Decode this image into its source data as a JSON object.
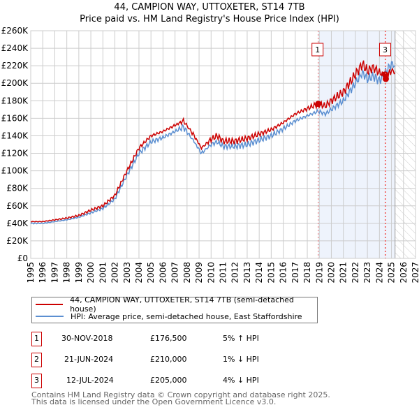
{
  "title": "44, CAMPION WAY, UTTOXETER, ST14 7TB",
  "subtitle": "Price paid vs. HM Land Registry's House Price Index (HPI)",
  "colors": {
    "property": "#cc0000",
    "hpi": "#5b8fd1",
    "shade": "#eef3fc"
  },
  "chart_data": {
    "type": "line",
    "xlim": [
      1995,
      2027
    ],
    "ylim": [
      0,
      260000
    ],
    "yticks": [
      0,
      20000,
      40000,
      60000,
      80000,
      100000,
      120000,
      140000,
      160000,
      180000,
      200000,
      220000,
      240000,
      260000
    ],
    "ytick_labels": [
      "£0",
      "£20K",
      "£40K",
      "£60K",
      "£80K",
      "£100K",
      "£120K",
      "£140K",
      "£160K",
      "£180K",
      "£200K",
      "£220K",
      "£240K",
      "£260K"
    ],
    "xticks": [
      1995,
      1996,
      1997,
      1998,
      1999,
      2000,
      2001,
      2002,
      2003,
      2004,
      2005,
      2006,
      2007,
      2008,
      2009,
      2010,
      2011,
      2012,
      2013,
      2014,
      2015,
      2016,
      2017,
      2018,
      2019,
      2020,
      2021,
      2022,
      2023,
      2024,
      2025,
      2026,
      2027
    ],
    "grid": true,
    "shaded_range": [
      2018.91,
      2025.3
    ],
    "hatched_from": 2025.3,
    "series": [
      {
        "name": "44, CAMPION WAY, UTTOXETER, ST14 7TB (semi-detached house)",
        "x": [
          1995,
          1996,
          1997,
          1998,
          1999,
          2000,
          2001,
          2002,
          2003,
          2004,
          2005,
          2006,
          2007,
          2007.7,
          2008.5,
          2009.2,
          2010,
          2010.5,
          2011,
          2012,
          2013,
          2014,
          2015,
          2016,
          2017,
          2018,
          2018.91,
          2019.5,
          2020,
          2021,
          2022,
          2022.6,
          2023,
          2023.5,
          2024,
          2024.47,
          2024.53,
          2025,
          2025.3
        ],
        "values": [
          42000,
          42000,
          44000,
          46000,
          49000,
          55000,
          60000,
          72000,
          100000,
          126000,
          140000,
          145000,
          152000,
          157000,
          142000,
          126000,
          136000,
          140000,
          134000,
          134000,
          137000,
          142000,
          147000,
          155000,
          165000,
          171000,
          176500,
          174000,
          180000,
          190000,
          210000,
          222000,
          214000,
          218000,
          212000,
          210000,
          205000,
          215000,
          212000
        ]
      },
      {
        "name": "HPI: Average price, semi-detached house, East Staffordshire",
        "x": [
          1995,
          1996,
          1997,
          1998,
          1999,
          2000,
          2001,
          2002,
          2003,
          2004,
          2005,
          2006,
          2007,
          2007.7,
          2008.5,
          2009.2,
          2010,
          2010.5,
          2011,
          2012,
          2013,
          2014,
          2015,
          2016,
          2017,
          2018,
          2018.91,
          2019.5,
          2020,
          2021,
          2022,
          2022.6,
          2023,
          2023.5,
          2024,
          2024.5,
          2025,
          2025.3
        ],
        "values": [
          40000,
          40000,
          42000,
          44000,
          47000,
          52000,
          57000,
          68000,
          95000,
          120000,
          133000,
          138000,
          145000,
          150000,
          135000,
          120000,
          130000,
          133000,
          128000,
          128000,
          130000,
          135000,
          140000,
          148000,
          157000,
          163000,
          168000,
          165000,
          170000,
          180000,
          200000,
          212000,
          205000,
          208000,
          203000,
          212000,
          222000,
          220000
        ]
      }
    ],
    "sales": [
      {
        "label": "1",
        "x": 2018.91,
        "value": 176500,
        "show_label": true
      },
      {
        "label": "2",
        "x": 2024.47,
        "value": 210000,
        "show_label": false
      },
      {
        "label": "3",
        "x": 2024.53,
        "value": 205000,
        "show_label": true
      }
    ]
  },
  "legend": {
    "property": "44, CAMPION WAY, UTTOXETER, ST14 7TB (semi-detached house)",
    "hpi": "HPI: Average price, semi-detached house, East Staffordshire"
  },
  "transactions": [
    {
      "num": "1",
      "date": "30-NOV-2018",
      "price": "£176,500",
      "hpi": "5% ↑ HPI"
    },
    {
      "num": "2",
      "date": "21-JUN-2024",
      "price": "£210,000",
      "hpi": "1% ↓ HPI"
    },
    {
      "num": "3",
      "date": "12-JUL-2024",
      "price": "£205,000",
      "hpi": "4% ↓ HPI"
    }
  ],
  "footer": {
    "line1": "Contains HM Land Registry data © Crown copyright and database right 2025.",
    "line2": "This data is licensed under the Open Government Licence v3.0."
  }
}
